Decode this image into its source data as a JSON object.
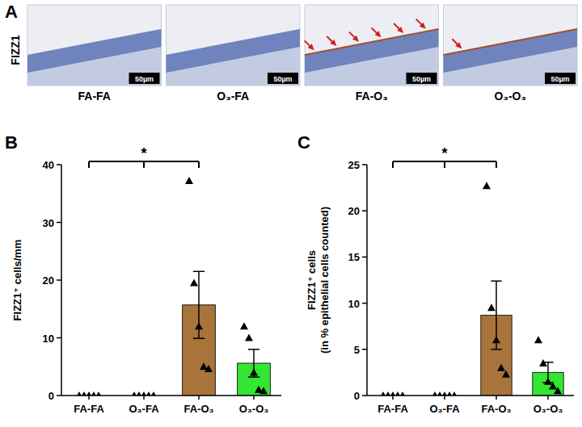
{
  "panel_a": {
    "letter": "A",
    "stain": "FIZZ1",
    "images": [
      {
        "label": "FA-FA",
        "scale_bar": "50µm",
        "arrows": 0
      },
      {
        "label": "O₃-FA",
        "scale_bar": "50µm",
        "arrows": 0
      },
      {
        "label": "FA-O₃",
        "scale_bar": "50µm",
        "arrows": 6
      },
      {
        "label": "O₃-O₃",
        "scale_bar": "50µm",
        "arrows": 1
      }
    ]
  },
  "chart_data": [
    {
      "letter": "B",
      "type": "bar",
      "ylabel": "FIZZ1⁺ cells/mm",
      "categories": [
        "FA-FA",
        "O₃-FA",
        "FA-O₃",
        "O₃-O₃"
      ],
      "values": [
        0,
        0,
        15.7,
        5.6
      ],
      "errors": [
        0,
        0,
        5.8,
        2.4
      ],
      "points": [
        [
          0,
          0,
          0,
          0,
          0
        ],
        [
          0,
          0,
          0,
          0,
          0
        ],
        [
          37.2,
          19.5,
          12,
          5,
          4.6
        ],
        [
          12,
          10,
          4,
          1,
          0.8
        ]
      ],
      "colors": [
        "#ffffff",
        "#ffffff",
        "#a8743a",
        "#33e633"
      ],
      "ylim": [
        0,
        40
      ],
      "yticks": [
        0,
        10,
        20,
        30,
        40
      ],
      "significance": {
        "label": "*",
        "groups": [
          "FA-FA",
          "O₃-FA",
          "FA-O₃"
        ]
      }
    },
    {
      "letter": "C",
      "type": "bar",
      "ylabel": "FIZZ1⁺ cells (in % epithelial cells counted)",
      "categories": [
        "FA-FA",
        "O₃-FA",
        "FA-O₃",
        "O₃-O₃"
      ],
      "values": [
        0,
        0,
        8.7,
        2.5
      ],
      "errors": [
        0,
        0,
        3.7,
        1.1
      ],
      "points": [
        [
          0,
          0,
          0,
          0,
          0
        ],
        [
          0,
          0,
          0,
          0,
          0
        ],
        [
          22.7,
          9.5,
          6,
          3,
          2.3
        ],
        [
          6,
          3.5,
          1.5,
          1,
          0.5
        ]
      ],
      "colors": [
        "#ffffff",
        "#ffffff",
        "#a8743a",
        "#33e633"
      ],
      "ylim": [
        0,
        25
      ],
      "yticks": [
        0,
        5,
        10,
        15,
        20,
        25
      ],
      "significance": {
        "label": "*",
        "groups": [
          "FA-FA",
          "O₃-FA",
          "FA-O₃"
        ]
      }
    }
  ]
}
